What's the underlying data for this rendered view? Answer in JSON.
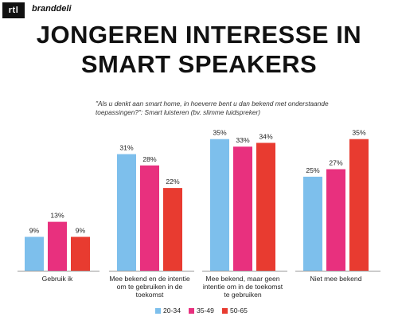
{
  "branding": {
    "logo_left": "rtl",
    "logo_right": "branddeli"
  },
  "header": {
    "title_line1": "JONGEREN INTERESSE IN",
    "title_line2": "SMART SPEAKERS",
    "question_line1": "\"Als u denkt aan smart home, in hoeverre bent u dan bekend met onderstaande",
    "question_line2": "toepassingen?\": Smart luisteren (bv. slimme luidspreker)"
  },
  "colors": {
    "s1": "#7dbfec",
    "s2": "#e8307e",
    "s3": "#e83b30",
    "axis": "#999999"
  },
  "chart_data": {
    "type": "bar",
    "ylim": [
      0,
      40
    ],
    "categories": [
      [
        "Gebruik ik"
      ],
      [
        "Mee bekend en de intentie",
        "om te gebruiken in de",
        "toekomst"
      ],
      [
        "Mee bekend, maar geen",
        "intentie om in de toekomst",
        "te gebruiken"
      ],
      [
        "Niet mee bekend"
      ]
    ],
    "series": [
      {
        "name": "20-34",
        "values": [
          9,
          31,
          35,
          25
        ]
      },
      {
        "name": "35-49",
        "values": [
          13,
          28,
          33,
          27
        ]
      },
      {
        "name": "50-65",
        "values": [
          9,
          22,
          34,
          35
        ]
      }
    ],
    "value_suffix": "%",
    "legend_position": "bottom"
  }
}
